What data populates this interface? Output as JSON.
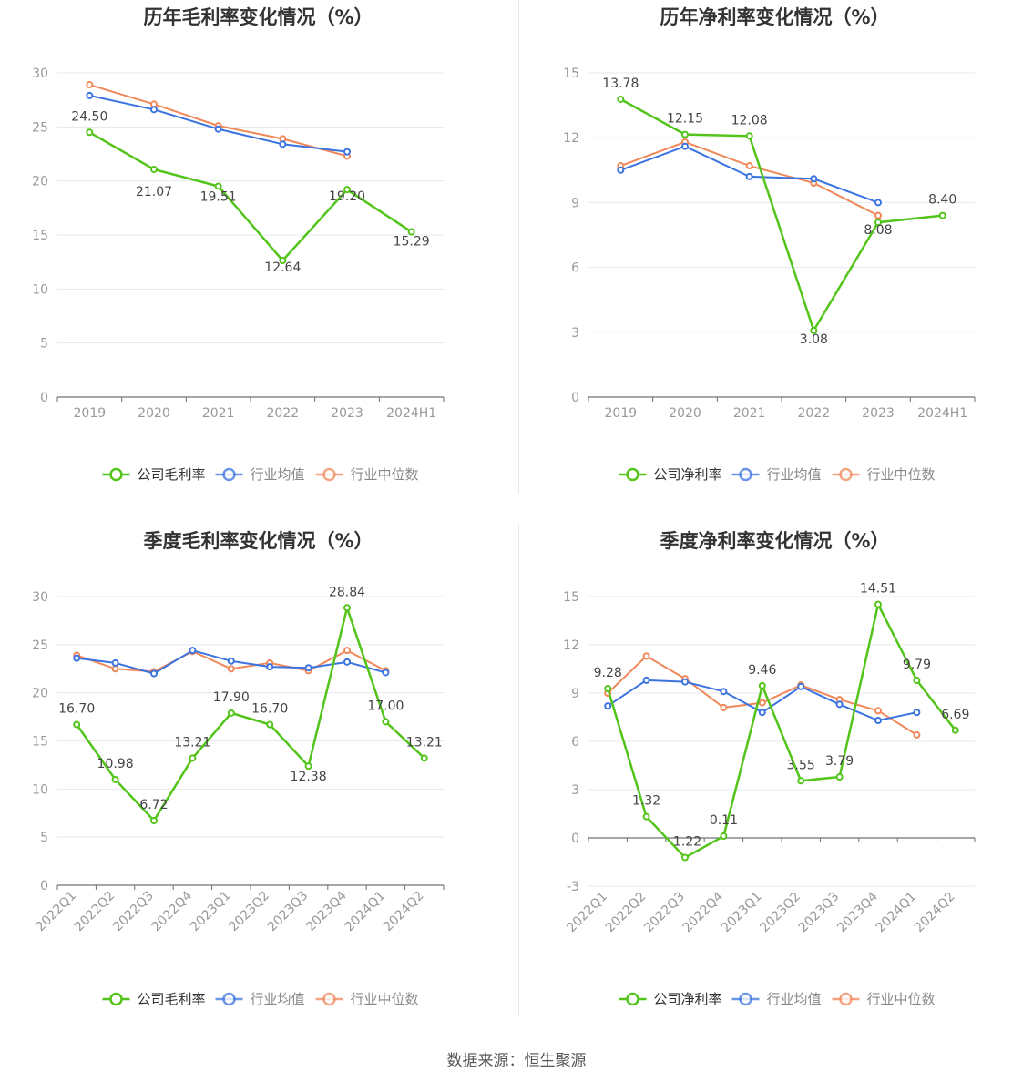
{
  "footer": {
    "source": "数据来源：恒生聚源"
  },
  "legend_labels": {
    "company_gross": "公司毛利率",
    "company_net": "公司净利率",
    "industry_avg": "行业均值",
    "industry_median": "行业中位数"
  },
  "colors": {
    "company": "#52c41a",
    "avg": "#3b73e0",
    "median": "#f0885a",
    "grid": "#e6e8ee",
    "axis": "#999999",
    "text": "#444444"
  },
  "chart_data": [
    {
      "type": "line",
      "title": "历年毛利率变化情况（%）",
      "categories": [
        "2019",
        "2020",
        "2021",
        "2022",
        "2023",
        "2024H1"
      ],
      "ylim": [
        0,
        30
      ],
      "yticks": [
        0,
        5,
        10,
        15,
        20,
        25,
        30
      ],
      "grid": true,
      "legend_position": "bottom",
      "series": [
        {
          "name": "公司毛利率",
          "values": [
            24.5,
            21.07,
            19.51,
            12.64,
            19.2,
            15.29
          ],
          "labels": [
            "24.50",
            "21.07",
            "19.51",
            "12.64",
            "19.20",
            "15.29"
          ]
        },
        {
          "name": "行业均值",
          "values": [
            27.9,
            26.6,
            24.8,
            23.4,
            22.7,
            null
          ]
        },
        {
          "name": "行业中位数",
          "values": [
            28.9,
            27.1,
            25.1,
            23.9,
            22.3,
            null
          ]
        }
      ]
    },
    {
      "type": "line",
      "title": "历年净利率变化情况（%）",
      "categories": [
        "2019",
        "2020",
        "2021",
        "2022",
        "2023",
        "2024H1"
      ],
      "ylim": [
        0,
        15
      ],
      "yticks": [
        0,
        3,
        6,
        9,
        12,
        15
      ],
      "grid": true,
      "legend_position": "bottom",
      "series": [
        {
          "name": "公司净利率",
          "values": [
            13.78,
            12.15,
            12.08,
            3.08,
            8.08,
            8.4
          ],
          "labels": [
            "13.78",
            "12.15",
            "12.08",
            "3.08",
            "8.08",
            "8.40"
          ]
        },
        {
          "name": "行业均值",
          "values": [
            10.5,
            11.6,
            10.2,
            10.1,
            9.0,
            null
          ]
        },
        {
          "name": "行业中位数",
          "values": [
            10.7,
            11.8,
            10.7,
            9.9,
            8.4,
            null
          ]
        }
      ]
    },
    {
      "type": "line",
      "title": "季度毛利率变化情况（%）",
      "categories": [
        "2022Q1",
        "2022Q2",
        "2022Q3",
        "2022Q4",
        "2023Q1",
        "2023Q2",
        "2023Q3",
        "2023Q4",
        "2024Q1",
        "2024Q2"
      ],
      "ylim": [
        0,
        30
      ],
      "yticks": [
        0,
        5,
        10,
        15,
        20,
        25,
        30
      ],
      "grid": true,
      "legend_position": "bottom",
      "series": [
        {
          "name": "公司毛利率",
          "values": [
            16.7,
            10.98,
            6.72,
            13.21,
            17.9,
            16.7,
            12.38,
            28.84,
            17.0,
            13.21
          ],
          "labels": [
            "16.70",
            "10.98",
            "6.72",
            "13.21",
            "17.90",
            "16.70",
            "12.38",
            "28.84",
            "17.00",
            "13.21"
          ]
        },
        {
          "name": "行业均值",
          "values": [
            23.6,
            23.1,
            22.0,
            24.4,
            23.3,
            22.7,
            22.6,
            23.2,
            22.1,
            null
          ]
        },
        {
          "name": "行业中位数",
          "values": [
            23.9,
            22.5,
            22.2,
            24.3,
            22.5,
            23.1,
            22.3,
            24.4,
            22.3,
            null
          ]
        }
      ]
    },
    {
      "type": "line",
      "title": "季度净利率变化情况（%）",
      "categories": [
        "2022Q1",
        "2022Q2",
        "2022Q3",
        "2022Q4",
        "2023Q1",
        "2023Q2",
        "2023Q3",
        "2023Q4",
        "2024Q1",
        "2024Q2"
      ],
      "ylim": [
        -3,
        15
      ],
      "yticks": [
        -3,
        0,
        3,
        6,
        9,
        12,
        15
      ],
      "grid": true,
      "legend_position": "bottom",
      "series": [
        {
          "name": "公司净利率",
          "values": [
            9.28,
            1.32,
            -1.22,
            0.11,
            9.46,
            3.55,
            3.79,
            14.51,
            9.79,
            6.69
          ],
          "labels": [
            "9.28",
            "1.32",
            "-1.22",
            "0.11",
            "9.46",
            "3.55",
            "3.79",
            "14.51",
            "9.79",
            "6.69"
          ]
        },
        {
          "name": "行业均值",
          "values": [
            8.2,
            9.8,
            9.7,
            9.1,
            7.8,
            9.4,
            8.3,
            7.3,
            7.8,
            null
          ]
        },
        {
          "name": "行业中位数",
          "values": [
            9.0,
            11.3,
            9.9,
            8.1,
            8.4,
            9.5,
            8.6,
            7.9,
            6.4,
            null
          ]
        }
      ]
    }
  ]
}
